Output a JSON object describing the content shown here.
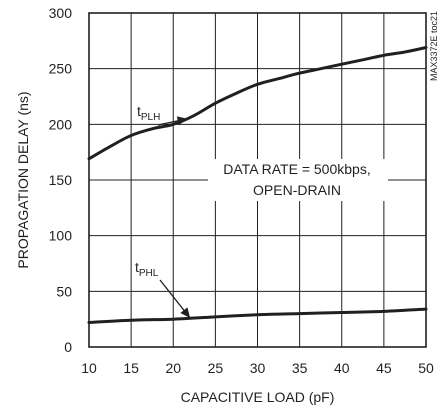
{
  "chart_data": {
    "type": "line",
    "title": "",
    "xlabel": "CAPACITIVE LOAD (pF)",
    "ylabel": "PROPAGATION DELAY (ns)",
    "xlim": [
      10,
      50
    ],
    "ylim": [
      0,
      300
    ],
    "x_ticks": [
      10,
      15,
      20,
      25,
      30,
      35,
      40,
      45,
      50
    ],
    "y_ticks": [
      0,
      50,
      100,
      150,
      200,
      250,
      300
    ],
    "grid": true,
    "legend": "none",
    "series": [
      {
        "label_main": "t",
        "label_sub": "PLH",
        "x": [
          10,
          12.5,
          15,
          17.5,
          20,
          22.5,
          25,
          27.5,
          30,
          32.5,
          35,
          37.5,
          40,
          42.5,
          45,
          47.5,
          50
        ],
        "y": [
          169,
          180,
          190,
          196,
          200,
          208,
          219,
          228,
          236,
          241,
          246,
          250,
          254,
          258,
          262,
          265,
          269
        ]
      },
      {
        "label_main": "t",
        "label_sub": "PHL",
        "x": [
          10,
          15,
          20,
          25,
          30,
          35,
          40,
          45,
          50
        ],
        "y": [
          22,
          24,
          25,
          27,
          29,
          30,
          31,
          32,
          34
        ]
      }
    ],
    "annotations": [
      "DATA RATE = 500kbps,",
      "OPEN-DRAIN"
    ],
    "side_code": "MAX3372E toc21",
    "line_color": "#231f20"
  }
}
